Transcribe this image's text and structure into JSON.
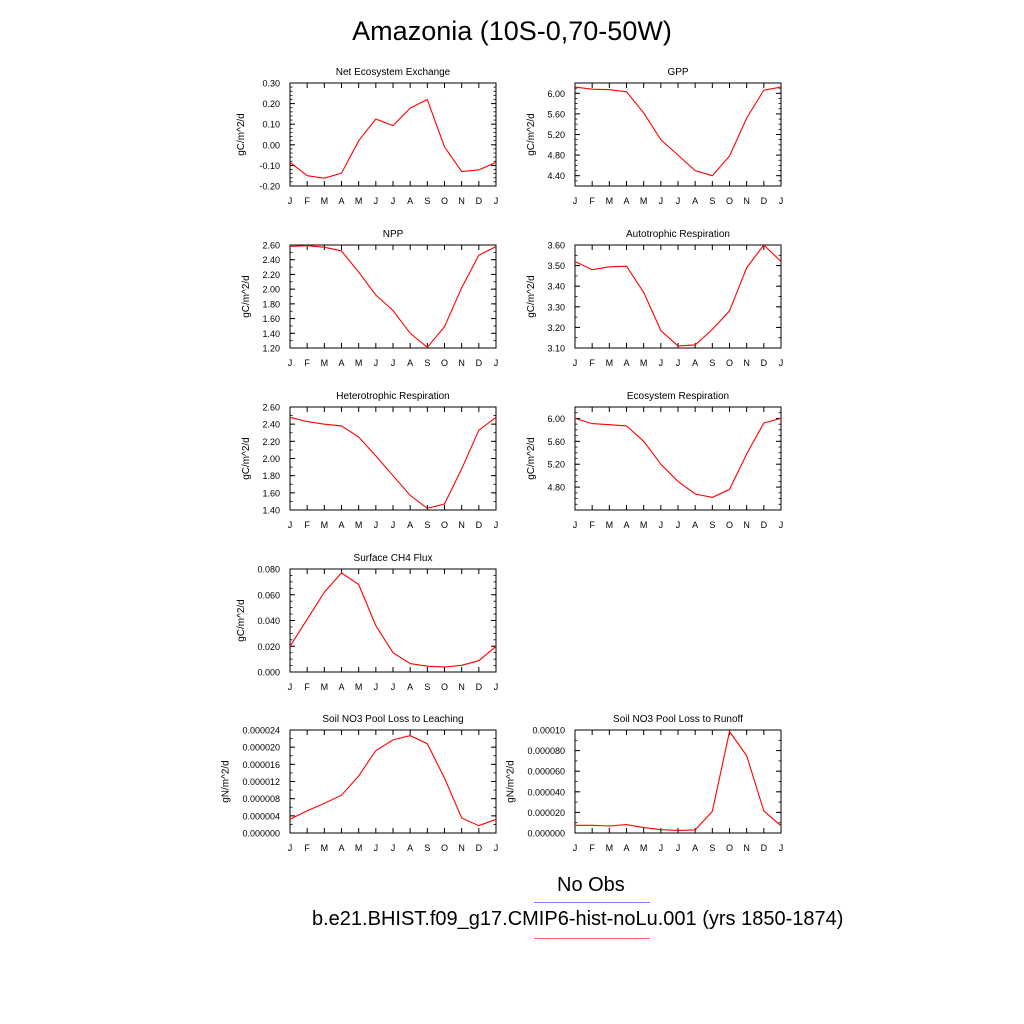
{
  "title": "Amazonia (10S-0,70-50W)",
  "legend": [
    {
      "label": "No Obs",
      "color": "#8080ff"
    },
    {
      "label": "b.e21.BHIST.f09_g17.CMIP6-hist-noLu.001 (yrs 1850-1874)",
      "color": "#ff0000"
    }
  ],
  "series_color": "#ff0000",
  "month_labels": [
    "J",
    "F",
    "M",
    "A",
    "M",
    "J",
    "J",
    "A",
    "S",
    "O",
    "N",
    "D",
    "J"
  ],
  "chart_data": [
    {
      "type": "line",
      "title": "Net Ecosystem Exchange",
      "ylabel": "gC/m^2/d",
      "ylim": [
        -0.2,
        0.3
      ],
      "yticks": [
        -0.2,
        -0.1,
        0.0,
        0.1,
        0.2,
        0.3
      ],
      "ytick_labels": [
        "-0.20",
        "-0.10",
        "0.00",
        "0.10",
        "0.20",
        "0.30"
      ],
      "minor": 4,
      "series": [
        {
          "values": [
            -0.085,
            -0.15,
            -0.162,
            -0.138,
            0.02,
            0.125,
            0.093,
            0.178,
            0.22,
            -0.01,
            -0.13,
            -0.122,
            -0.085
          ]
        }
      ]
    },
    {
      "type": "line",
      "title": "GPP",
      "ylabel": "gC/m^2/d",
      "ylim": [
        4.2,
        6.2
      ],
      "yticks": [
        4.4,
        4.8,
        5.2,
        5.6,
        6.0
      ],
      "ytick_labels": [
        "4.40",
        "4.80",
        "5.20",
        "5.60",
        "6.00"
      ],
      "minor": 3,
      "series": [
        {
          "values": [
            6.12,
            6.08,
            6.07,
            6.03,
            5.62,
            5.1,
            4.8,
            4.5,
            4.4,
            4.78,
            5.52,
            6.06,
            6.12
          ]
        }
      ]
    },
    {
      "type": "line",
      "title": "NPP",
      "ylabel": "gC/m^2/d",
      "ylim": [
        1.2,
        2.6
      ],
      "yticks": [
        1.2,
        1.4,
        1.6,
        1.8,
        2.0,
        2.2,
        2.4,
        2.6
      ],
      "ytick_labels": [
        "1.20",
        "1.40",
        "1.60",
        "1.80",
        "2.00",
        "2.20",
        "2.40",
        "2.60"
      ],
      "minor": 1,
      "series": [
        {
          "values": [
            2.58,
            2.59,
            2.57,
            2.52,
            2.23,
            1.92,
            1.71,
            1.4,
            1.21,
            1.49,
            2.02,
            2.46,
            2.58
          ]
        }
      ]
    },
    {
      "type": "line",
      "title": "Autotrophic Respiration",
      "ylabel": "gC/m^2/d",
      "ylim": [
        3.1,
        3.6
      ],
      "yticks": [
        3.1,
        3.2,
        3.3,
        3.4,
        3.5,
        3.6
      ],
      "ytick_labels": [
        "3.10",
        "3.20",
        "3.30",
        "3.40",
        "3.50",
        "3.60"
      ],
      "minor": 1,
      "series": [
        {
          "values": [
            3.52,
            3.48,
            3.494,
            3.497,
            3.37,
            3.185,
            3.11,
            3.115,
            3.19,
            3.28,
            3.49,
            3.6,
            3.52
          ]
        }
      ]
    },
    {
      "type": "line",
      "title": "Heterotrophic Respiration",
      "ylabel": "gC/m^2/d",
      "ylim": [
        1.4,
        2.6
      ],
      "yticks": [
        1.4,
        1.6,
        1.8,
        2.0,
        2.2,
        2.4,
        2.6
      ],
      "ytick_labels": [
        "1.40",
        "1.60",
        "1.80",
        "2.00",
        "2.20",
        "2.40",
        "2.60"
      ],
      "minor": 1,
      "series": [
        {
          "values": [
            2.48,
            2.43,
            2.4,
            2.38,
            2.25,
            2.03,
            1.8,
            1.57,
            1.42,
            1.47,
            1.88,
            2.33,
            2.48
          ]
        }
      ]
    },
    {
      "type": "line",
      "title": "Ecosystem Respiration",
      "ylabel": "gC/m^2/d",
      "ylim": [
        4.4,
        6.2
      ],
      "yticks": [
        4.8,
        5.2,
        5.6,
        6.0
      ],
      "ytick_labels": [
        "4.80",
        "5.20",
        "5.60",
        "6.00"
      ],
      "minor": 3,
      "series": [
        {
          "values": [
            6.0,
            5.91,
            5.89,
            5.87,
            5.6,
            5.2,
            4.9,
            4.68,
            4.62,
            4.76,
            5.38,
            5.92,
            6.0
          ]
        }
      ]
    },
    {
      "type": "line",
      "title": "Surface CH4 Flux",
      "ylabel": "gC/m^2/d",
      "ylim": [
        0.0,
        0.08
      ],
      "yticks": [
        0.0,
        0.02,
        0.04,
        0.06,
        0.08
      ],
      "ytick_labels": [
        "0.000",
        "0.020",
        "0.040",
        "0.060",
        "0.080"
      ],
      "minor": 3,
      "series": [
        {
          "values": [
            0.02,
            0.041,
            0.062,
            0.077,
            0.068,
            0.036,
            0.015,
            0.0065,
            0.0045,
            0.0038,
            0.0052,
            0.0088,
            0.02
          ]
        }
      ]
    },
    {
      "type": "line",
      "title": "Soil NO3 Pool Loss to Leaching",
      "ylabel": "gN/m^2/d",
      "ylim": [
        0.0,
        2.4e-05
      ],
      "yticks": [
        0.0,
        4e-06,
        8e-06,
        1.2e-05,
        1.6e-05,
        2e-05,
        2.4e-05
      ],
      "ytick_labels": [
        "0.000000",
        "0.000004",
        "0.000008",
        "0.000012",
        "0.000016",
        "0.000020",
        "0.000024"
      ],
      "minor": 1,
      "series": [
        {
          "values": [
            3.2e-06,
            5.2e-06,
            6.9e-06,
            8.8e-06,
            1.33e-05,
            1.92e-05,
            2.17e-05,
            2.27e-05,
            2.08e-05,
            1.28e-05,
            3.5e-06,
            1.7e-06,
            3.2e-06
          ]
        }
      ]
    },
    {
      "type": "line",
      "title": "Soil NO3 Pool Loss to Runoff",
      "ylabel": "gN/m^2/d",
      "ylim": [
        0.0,
        0.0001
      ],
      "yticks": [
        0.0,
        2e-05,
        4e-05,
        6e-05,
        8e-05,
        0.0001
      ],
      "ytick_labels": [
        "0.000000",
        "0.000020",
        "0.000040",
        "0.000060",
        "0.000080",
        "0.00010"
      ],
      "minor": 1,
      "series": [
        {
          "values": [
            7.5e-06,
            7.5e-06,
            6.8e-06,
            8.2e-06,
            5.2e-06,
            3.2e-06,
            2.5e-06,
            3e-06,
            2.1e-05,
            9.85e-05,
            7.5e-05,
            2.15e-05,
            7e-06
          ]
        }
      ]
    }
  ]
}
